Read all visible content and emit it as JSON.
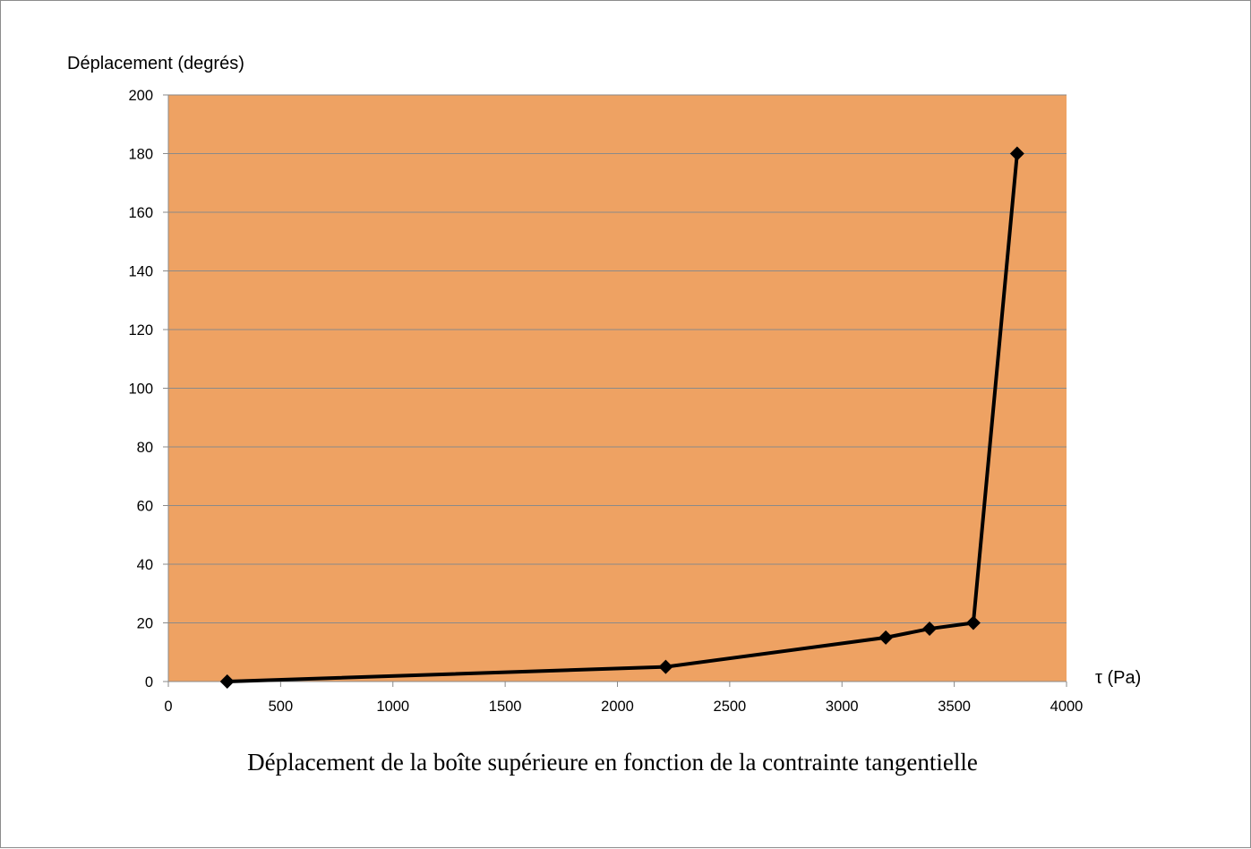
{
  "chart_data": {
    "type": "line",
    "title": "Déplacement de la boîte supérieure en fonction de la contrainte tangentielle",
    "xlabel": "τ (Pa)",
    "ylabel": "Déplacement (degrés)",
    "xlim": [
      0,
      4000
    ],
    "ylim": [
      0,
      200
    ],
    "x_ticks": [
      0,
      500,
      1000,
      1500,
      2000,
      2500,
      3000,
      3500,
      4000
    ],
    "y_ticks": [
      0,
      20,
      40,
      60,
      80,
      100,
      120,
      140,
      160,
      180,
      200
    ],
    "grid": "horizontal",
    "legend": "none",
    "series": [
      {
        "x": [
          262,
          2215,
          3195,
          3390,
          3585,
          3780
        ],
        "y": [
          0,
          5,
          15,
          18,
          20,
          180
        ],
        "marker": "diamond",
        "color": "#000000"
      }
    ],
    "colors": {
      "plot_background": "#EEA263",
      "gridline": "#8a8a8a",
      "line": "#000000"
    }
  }
}
